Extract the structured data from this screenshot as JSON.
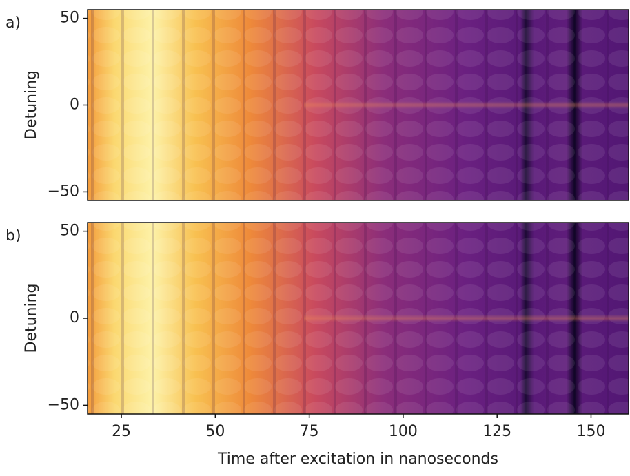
{
  "chart_data": [
    {
      "type": "heatmap",
      "panel_label": "a)",
      "ylabel": "Detuning",
      "xlim": [
        16,
        160
      ],
      "ylim": [
        -55,
        55
      ],
      "yticks": [
        {
          "value": -50,
          "label": "−50"
        },
        0,
        50
      ]
    },
    {
      "type": "heatmap",
      "panel_label": "b)",
      "ylabel": "Detuning",
      "xlabel": "Time after excitation in nanoseconds",
      "xlim": [
        16,
        160
      ],
      "ylim": [
        -55,
        55
      ],
      "yticks": [
        {
          "value": -50,
          "label": "−50"
        },
        0,
        50
      ],
      "xticks": [
        25,
        50,
        75,
        100,
        125,
        150
      ]
    }
  ]
}
